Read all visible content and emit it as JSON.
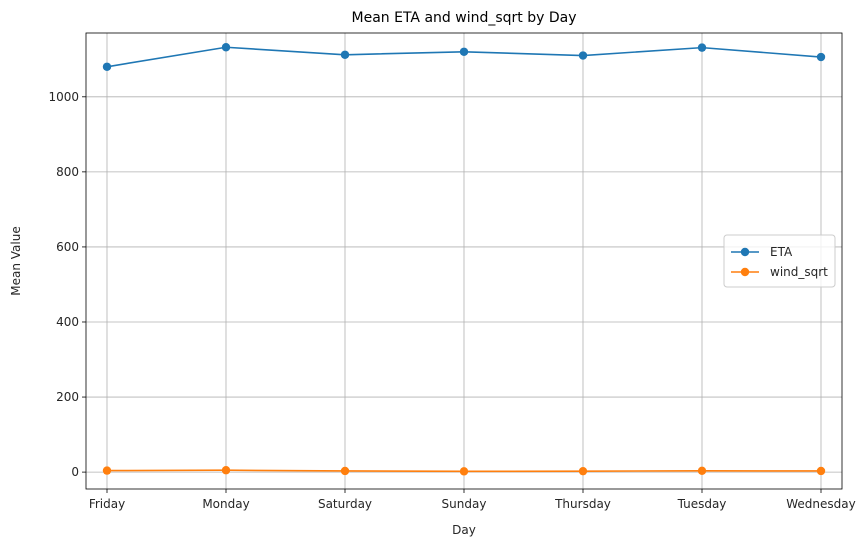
{
  "chart_data": {
    "type": "line",
    "title": "Mean ETA and wind_sqrt by Day",
    "xlabel": "Day",
    "ylabel": "Mean Value",
    "categories": [
      "Friday",
      "Monday",
      "Saturday",
      "Sunday",
      "Thursday",
      "Tuesday",
      "Wednesday"
    ],
    "series": [
      {
        "name": "ETA",
        "color": "#1f77b4",
        "marker": "circle",
        "values": [
          1080,
          1132,
          1112,
          1120,
          1110,
          1131,
          1106
        ]
      },
      {
        "name": "wind_sqrt",
        "color": "#ff7f0e",
        "marker": "circle",
        "values": [
          4,
          5,
          3,
          2,
          2.5,
          3.5,
          3
        ]
      }
    ],
    "ylim": [
      -45,
      1170
    ],
    "yticks": [
      0,
      200,
      400,
      600,
      800,
      1000
    ],
    "grid": true,
    "legend_position": "center-right"
  }
}
